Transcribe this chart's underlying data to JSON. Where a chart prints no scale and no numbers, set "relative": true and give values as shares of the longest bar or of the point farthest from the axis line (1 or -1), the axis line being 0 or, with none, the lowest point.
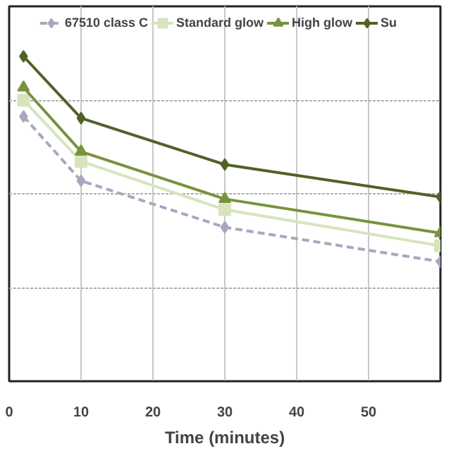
{
  "chart_data": {
    "type": "line",
    "xlabel": "Time (minutes)",
    "x": [
      2,
      10,
      30,
      60
    ],
    "xlim": [
      0,
      60
    ],
    "xticks": [
      0,
      10,
      20,
      30,
      40,
      50
    ],
    "relative": true,
    "grid": true,
    "legend": "top",
    "series": [
      {
        "name": "67510 class C",
        "color": "#a6a8bc",
        "values": [
          0.815,
          0.617,
          0.474,
          0.368
        ],
        "marker": "diamond",
        "line_style": "dashed"
      },
      {
        "name": "Standard glow",
        "color": "#d7e4bd",
        "values": [
          0.865,
          0.677,
          0.528,
          0.417
        ],
        "marker": "square",
        "line_style": "solid"
      },
      {
        "name": "High glow",
        "color": "#77933c",
        "values": [
          0.904,
          0.707,
          0.561,
          0.456
        ],
        "marker": "triangle",
        "line_style": "solid"
      },
      {
        "name": "Su",
        "color": "#4f6228",
        "values": [
          1.0,
          0.81,
          0.667,
          0.567
        ],
        "marker": "diamond",
        "line_style": "solid"
      }
    ]
  }
}
